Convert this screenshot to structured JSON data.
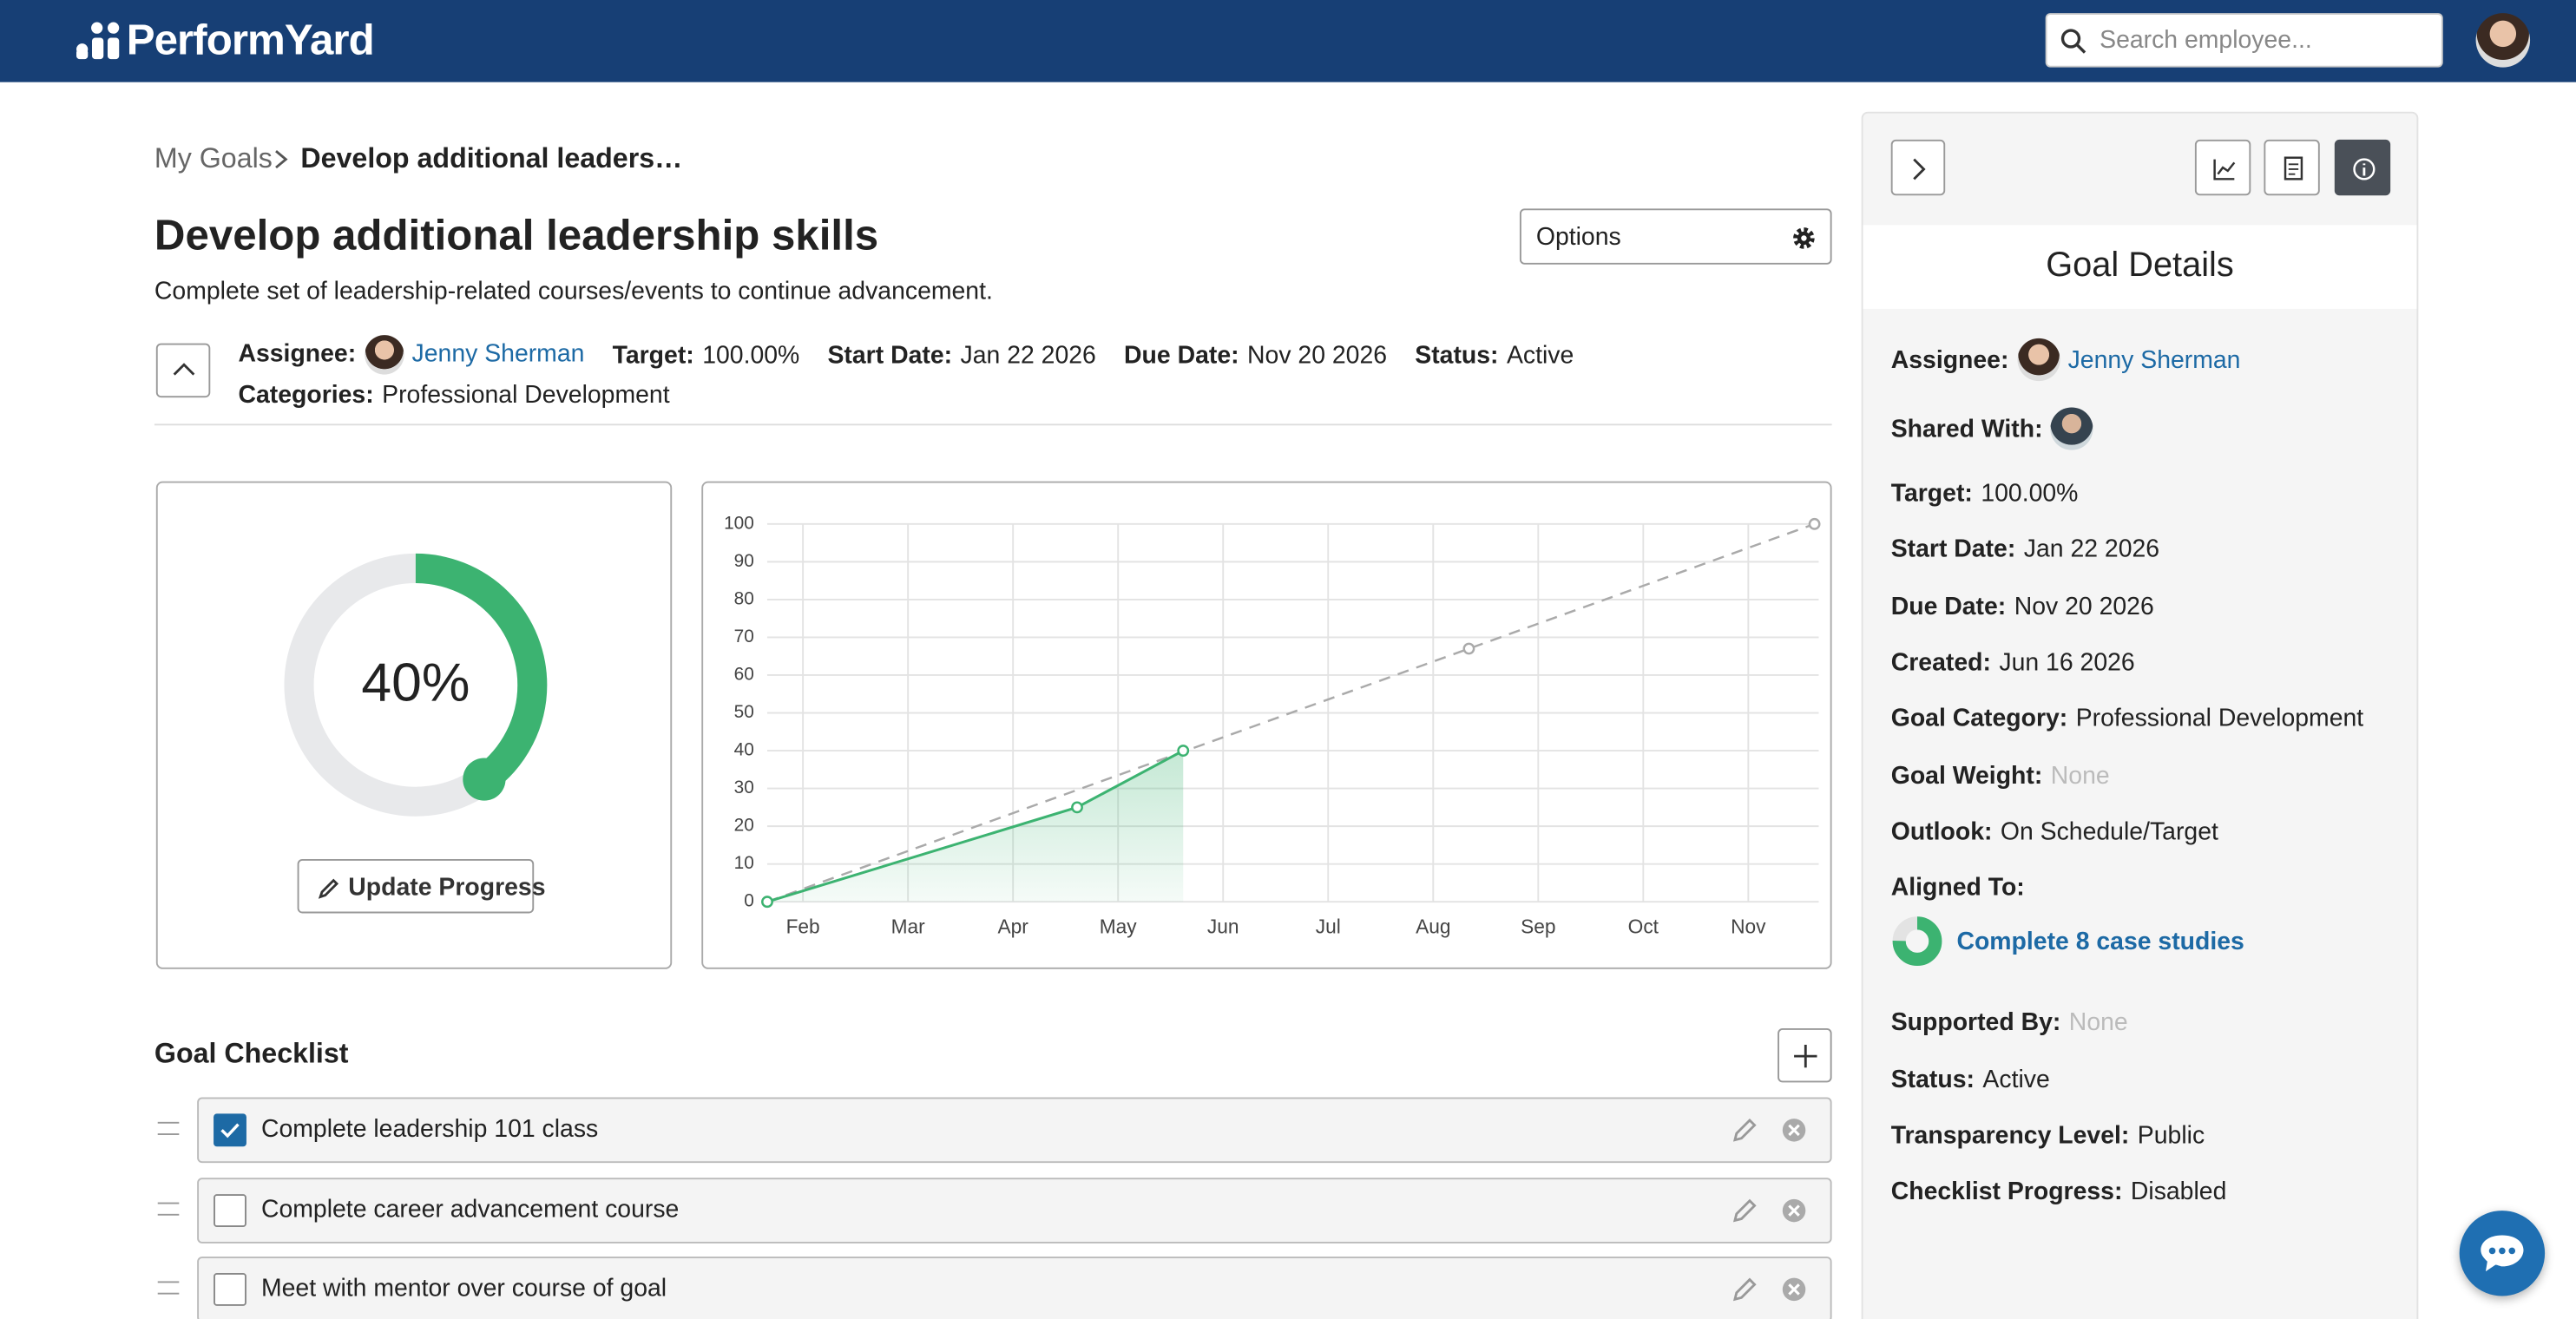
{
  "header": {
    "logo": "PerformYard",
    "search_placeholder": "Search employee..."
  },
  "breadcrumb": {
    "parent": "My Goals",
    "current": "Develop additional leaders…"
  },
  "goal": {
    "title": "Develop additional leadership skills",
    "description": "Complete set of leadership-related courses/events to continue advancement.",
    "options": "Options",
    "meta": [
      {
        "label": "Assignee:",
        "value": "Jenny Sherman"
      },
      {
        "label": "Target:",
        "value": "100.00%"
      },
      {
        "label": "Start Date:",
        "value": "Jan 22 2026"
      },
      {
        "label": "Due Date:",
        "value": "Nov 20 2026"
      },
      {
        "label": "Status:",
        "value": "Active"
      },
      {
        "label": "Categories:",
        "value": "Professional Development"
      }
    ]
  },
  "progress": {
    "value": 40,
    "label": "40%",
    "button": "Update Progress"
  },
  "chart_data": {
    "type": "line",
    "xlim": [
      1.66,
      11.67
    ],
    "xticks": [
      {
        "value": 2,
        "label": "Feb"
      },
      {
        "value": 3,
        "label": "Mar"
      },
      {
        "value": 4,
        "label": "Apr"
      },
      {
        "value": 5,
        "label": "May"
      },
      {
        "value": 6,
        "label": "Jun"
      },
      {
        "value": 7,
        "label": "Jul"
      },
      {
        "value": 8,
        "label": "Aug"
      },
      {
        "value": 9,
        "label": "Sep"
      },
      {
        "value": 10,
        "label": "Oct"
      },
      {
        "value": 11,
        "label": "Nov"
      }
    ],
    "ylim": [
      0,
      100
    ],
    "yticks": [
      0,
      10,
      20,
      30,
      40,
      50,
      60,
      70,
      80,
      90,
      100
    ],
    "grid": true,
    "series": [
      {
        "color": "#aaaaaa",
        "dashed": true,
        "area": false,
        "x": [
          1.66,
          8.34,
          11.63
        ],
        "values": [
          0,
          67,
          100
        ]
      },
      {
        "color": "#3cb371",
        "dashed": false,
        "area": true,
        "x": [
          1.66,
          4.61,
          5.62
        ],
        "values": [
          0,
          25,
          40
        ]
      }
    ]
  },
  "checklist": {
    "title": "Goal Checklist",
    "items": [
      {
        "text": "Complete leadership 101 class",
        "done": true
      },
      {
        "text": "Complete career advancement course",
        "done": false
      },
      {
        "text": "Meet with mentor over course of goal",
        "done": false
      }
    ]
  },
  "sidebar": {
    "title": "Goal Details",
    "fields": [
      {
        "label": "Assignee:",
        "value": "Jenny Sherman"
      },
      {
        "label": "Shared With:"
      },
      {
        "label": "Target:",
        "value": "100.00%"
      },
      {
        "label": "Start Date:",
        "value": "Jan 22 2026"
      },
      {
        "label": "Due Date:",
        "value": "Nov 20 2026"
      },
      {
        "label": "Created:",
        "value": "Jun 16 2026"
      },
      {
        "label": "Goal Category:",
        "value": "Professional Development"
      },
      {
        "label": "Goal Weight:",
        "value": "None"
      },
      {
        "label": "Outlook:",
        "value": "On Schedule/Target"
      },
      {
        "label": "Aligned To:",
        "value": "Complete 8 case studies"
      },
      {
        "label": "Supported By:",
        "value": "None"
      },
      {
        "label": "Status:",
        "value": "Active"
      },
      {
        "label": "Transparency Level:",
        "value": "Public"
      },
      {
        "label": "Checklist Progress:",
        "value": "Disabled"
      }
    ]
  }
}
